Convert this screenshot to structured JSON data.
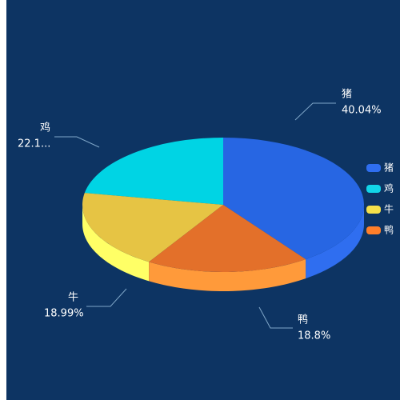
{
  "chart_data": {
    "type": "pie3d",
    "categories": [
      "猪",
      "鸡",
      "牛",
      "鸭"
    ],
    "values": [
      40.04,
      22.17,
      18.99,
      18.8
    ],
    "value_labels": [
      "40.04%",
      "22.1...",
      "18.99%",
      "18.8%"
    ],
    "colors": [
      "#2766e3",
      "#00d4e4",
      "#e6c444",
      "#e3702a"
    ],
    "side_colors": [
      "#2f6ef0",
      "#12d5e8",
      "#ffff66",
      "#ff9a3a"
    ],
    "legend_colors": [
      "#2f6ef0",
      "#12d5e8",
      "#f5e04a",
      "#ff7f2a"
    ],
    "legend": "right"
  }
}
